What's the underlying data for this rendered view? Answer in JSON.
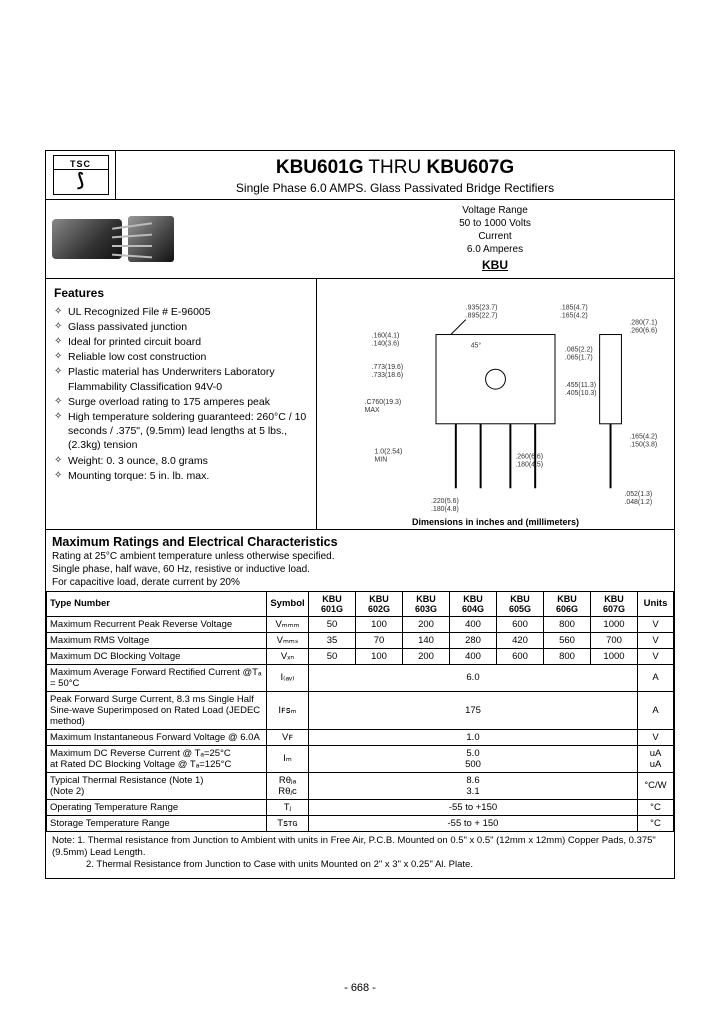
{
  "logo": {
    "top": "TSC",
    "symbol": "⟆"
  },
  "title": {
    "part1": "KBU601G",
    "thru": " THRU ",
    "part2": "KBU607G",
    "subtitle": "Single Phase 6.0 AMPS. Glass Passivated Bridge Rectifiers"
  },
  "voltage_box": {
    "l1": "Voltage Range",
    "l2": "50 to 1000 Volts",
    "l3": "Current",
    "l4": "6.0 Amperes",
    "pkg": "KBU"
  },
  "features": {
    "heading": "Features",
    "items": [
      "UL Recognized File # E-96005",
      "Glass passivated junction",
      "Ideal for printed circuit board",
      "Reliable low cost construction",
      "Plastic material has Underwriters Laboratory Flammability Classification 94V-0",
      "Surge overload rating to 175 amperes peak",
      "High temperature soldering guaranteed: 260°C / 10 seconds / .375\", (9.5mm) lead lengths at 5 lbs., (2.3kg) tension",
      "Weight: 0. 3 ounce, 8.0 grams",
      "Mounting torque: 5 in. lb. max."
    ]
  },
  "diagram": {
    "caption": "Dimensions in inches and (millimeters)",
    "labels": {
      "a": ".160(4.1)\n.140(3.6)",
      "b": ".935(23.7)\n.895(22.7)",
      "c": ".185(4.7)\n.165(4.2)",
      "d": ".280(7.1)\n.260(6.6)",
      "e": ".085(2.2)\n.065(1.7)",
      "f": ".455(11.3)\n.405(10.3)",
      "g": ".773(19.6)\n.733(18.6)",
      "h": ".C760(19.3)\nMAX",
      "i": "1.0(2.54)\nMIN",
      "j": ".220(5.6)\n.180(4.8)",
      "k": ".260(6.6)\n.180(4.5)",
      "l": ".165(4.2)\n.150(3.8)",
      "m": ".052(1.3)\n.048(1.2)",
      "n": "45°"
    }
  },
  "ratings": {
    "heading": "Maximum Ratings and Electrical Characteristics",
    "cond1": "Rating at 25°C ambient temperature unless otherwise specified.",
    "cond2": "Single phase, half wave, 60 Hz, resistive or inductive load.",
    "cond3": "For capacitive load, derate current by 20%",
    "type_number": "Type Number",
    "symbol_h": "Symbol",
    "units_h": "Units",
    "parts": [
      "KBU\n601G",
      "KBU\n602G",
      "KBU\n603G",
      "KBU\n604G",
      "KBU\n605G",
      "KBU\n606G",
      "KBU\n607G"
    ],
    "rows": [
      {
        "param": "Maximum Recurrent Peak Reverse Voltage",
        "sym": "Vₘₘₘ",
        "vals": [
          "50",
          "100",
          "200",
          "400",
          "600",
          "800",
          "1000"
        ],
        "unit": "V"
      },
      {
        "param": "Maximum RMS Voltage",
        "sym": "Vₘₘₛ",
        "vals": [
          "35",
          "70",
          "140",
          "280",
          "420",
          "560",
          "700"
        ],
        "unit": "V"
      },
      {
        "param": "Maximum DC Blocking Voltage",
        "sym": "Vₓₙ",
        "vals": [
          "50",
          "100",
          "200",
          "400",
          "600",
          "800",
          "1000"
        ],
        "unit": "V"
      },
      {
        "param": "Maximum Average Forward Rectified Current @Tₐ = 50°C",
        "sym": "I₍ₐᵥ₎",
        "span": "6.0",
        "unit": "A"
      },
      {
        "param": "Peak Forward Surge Current, 8.3 ms Single Half Sine-wave Superimposed on Rated Load (JEDEC method)",
        "sym": "Iꜰꜱₘ",
        "span": "175",
        "unit": "A"
      },
      {
        "param": "Maximum Instantaneous Forward Voltage @ 6.0A",
        "sym": "Vꜰ",
        "span": "1.0",
        "unit": "V"
      },
      {
        "param": "Maximum DC Reverse Current @ Tₐ=25°C\nat Rated DC Blocking Voltage @ Tₐ=125°C",
        "sym": "Iₘ",
        "span": "5.0\n500",
        "unit": "uA\nuA"
      },
      {
        "param": "Typical Thermal Resistance (Note 1)\n                                            (Note 2)",
        "sym": "Rθⱼₐ\nRθⱼᴄ",
        "span": "8.6\n3.1",
        "unit": "°C/W"
      },
      {
        "param": "Operating Temperature Range",
        "sym": "Tⱼ",
        "span": "-55 to +150",
        "unit": "°C"
      },
      {
        "param": "Storage Temperature Range",
        "sym": "Tꜱᴛɢ",
        "span": "-55 to + 150",
        "unit": "°C"
      }
    ]
  },
  "notes": {
    "n1": "Note: 1. Thermal resistance from Junction to Ambient with units in Free Air, P.C.B. Mounted on 0.5\" x 0.5\" (12mm x 12mm) Copper Pads, 0.375\" (9.5mm) Lead Length.",
    "n2": "2. Thermal Resistance from Junction to Case with units Mounted on 2\" x 3\" x 0.25\" Al. Plate."
  },
  "page_number": "- 668 -",
  "colors": {
    "text": "#000000",
    "border": "#000000",
    "bg": "#ffffff",
    "dim_text": "#555555"
  }
}
